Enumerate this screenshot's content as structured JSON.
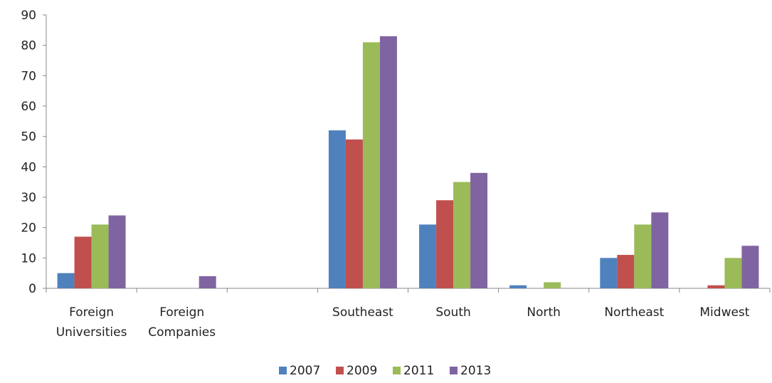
{
  "chart_data": {
    "type": "bar",
    "categories": [
      "Foreign Universities",
      "Foreign Companies",
      null,
      "Southeast",
      "South",
      "North",
      "Northeast",
      "Midwest"
    ],
    "series": [
      {
        "name": "2007",
        "color": "#4f81bd",
        "values": [
          5,
          0,
          0,
          52,
          21,
          1,
          10,
          0
        ]
      },
      {
        "name": "2009",
        "color": "#c0504d",
        "values": [
          17,
          0,
          0,
          49,
          29,
          0,
          11,
          1
        ]
      },
      {
        "name": "2011",
        "color": "#9bbb59",
        "values": [
          21,
          0,
          0,
          81,
          35,
          2,
          21,
          10
        ]
      },
      {
        "name": "2013",
        "color": "#8064a2",
        "values": [
          24,
          4,
          0,
          83,
          38,
          0,
          25,
          14
        ]
      }
    ],
    "ylim": [
      0,
      90
    ],
    "yticks": [
      0,
      10,
      20,
      30,
      40,
      50,
      60,
      70,
      80,
      90
    ],
    "grid": false,
    "legend": "bottom"
  }
}
